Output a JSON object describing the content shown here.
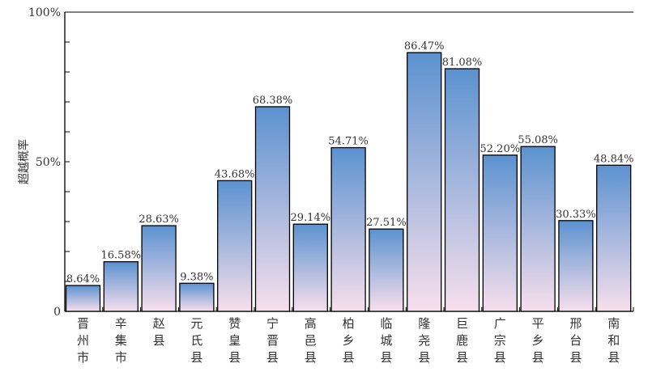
{
  "chart_data": {
    "type": "bar",
    "title": "",
    "xlabel": "",
    "ylabel": "超越概率",
    "ylim": [
      0,
      100
    ],
    "yticks": [
      {
        "value": 0,
        "label": "0"
      },
      {
        "value": 50,
        "label": "50%"
      },
      {
        "value": 100,
        "label": "100%"
      }
    ],
    "minor_tick_step": 10,
    "categories": [
      "晋州市",
      "辛集市",
      "赵县",
      "元氏县",
      "赞皇县",
      "宁晋县",
      "高邑县",
      "柏乡县",
      "临城县",
      "隆尧县",
      "巨鹿县",
      "广宗县",
      "平乡县",
      "邢台县",
      "南和县"
    ],
    "values": [
      8.64,
      16.58,
      28.63,
      9.38,
      43.68,
      68.38,
      29.14,
      54.71,
      27.51,
      86.47,
      81.08,
      52.2,
      55.08,
      30.33,
      48.84
    ],
    "data_labels": [
      "8.64%",
      "16.58%",
      "28.63%",
      "9.38%",
      "43.68%",
      "68.38%",
      "29.14%",
      "54.71%",
      "27.51%",
      "86.47%",
      "81.08%",
      "52.20%",
      "55.08%",
      "30.33%",
      "48.84%"
    ],
    "colors": {
      "bar_top": "#5b92d0",
      "bar_bottom": "#f7dfec",
      "stroke": "#000000"
    }
  }
}
